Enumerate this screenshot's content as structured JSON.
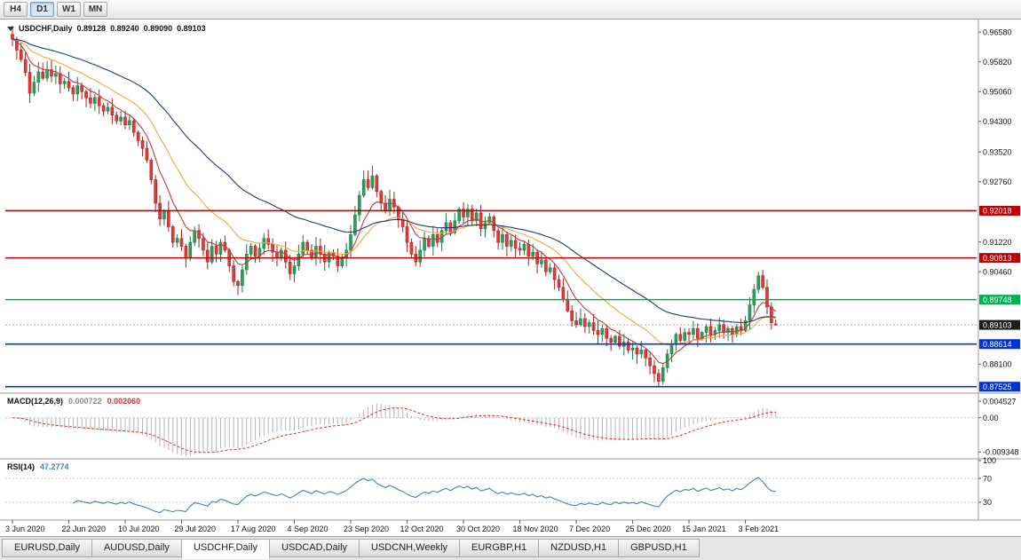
{
  "toolbar": {
    "timeframes": [
      {
        "label": "H4",
        "active": false
      },
      {
        "label": "D1",
        "active": true
      },
      {
        "label": "W1",
        "active": false
      },
      {
        "label": "MN",
        "active": false
      }
    ]
  },
  "chart_title": {
    "symbol": "USDCHF,Daily",
    "open": "0.89128",
    "high": "0.89240",
    "low": "0.89090",
    "close": "0.89103"
  },
  "indicators": {
    "macd": {
      "name": "MACD(12,26,9)",
      "value_main": "0.000722",
      "value_signal": "0.002060",
      "fast": 12,
      "slow": 26,
      "signal": 9,
      "axis_labels": [
        "0.004527",
        "0.00",
        "-0.009348"
      ],
      "hist_color": "#b4b4b4",
      "signal_color": "#cf3232"
    },
    "rsi": {
      "name": "RSI(14)",
      "value": "47.2774",
      "period": 14,
      "levels": [
        70,
        30
      ],
      "axis_labels": [
        "100",
        "70",
        "30"
      ],
      "color": "#4a7ebb"
    }
  },
  "chart_data": {
    "type": "candlestick",
    "symbol": "USDCHF",
    "timeframe": "Daily",
    "price_range": [
      0.8736,
      0.969
    ],
    "macd_range": [
      -0.0105,
      0.006
    ],
    "first_open": 0.9652,
    "closes": [
      0.964,
      0.9612,
      0.9588,
      0.9555,
      0.9502,
      0.953,
      0.9556,
      0.954,
      0.9562,
      0.9545,
      0.9552,
      0.9526,
      0.9532,
      0.9516,
      0.95,
      0.9521,
      0.9506,
      0.949,
      0.9476,
      0.9491,
      0.947,
      0.9456,
      0.9466,
      0.9446,
      0.9431,
      0.9441,
      0.9421,
      0.9432,
      0.9402,
      0.9381,
      0.9361,
      0.9331,
      0.9281,
      0.9221,
      0.9181,
      0.9201,
      0.9161,
      0.9121,
      0.9131,
      0.9111,
      0.9081,
      0.9121,
      0.9151,
      0.9131,
      0.9101,
      0.9071,
      0.9111,
      0.9091,
      0.9121,
      0.9101,
      0.9061,
      0.9021,
      0.9011,
      0.9051,
      0.9091,
      0.9111,
      0.9086,
      0.9106,
      0.9131,
      0.9116,
      0.9096,
      0.9081,
      0.9101,
      0.9071,
      0.9041,
      0.9061,
      0.9091,
      0.9121,
      0.9101,
      0.9081,
      0.9111,
      0.9091,
      0.9071,
      0.9096,
      0.9086,
      0.9061,
      0.9081,
      0.9101,
      0.9141,
      0.9191,
      0.9241,
      0.9281,
      0.9261,
      0.9291,
      0.9251,
      0.9221,
      0.9201,
      0.9231,
      0.9211,
      0.9181,
      0.9161,
      0.9121,
      0.9091,
      0.9071,
      0.9101,
      0.9131,
      0.9111,
      0.9141,
      0.9121,
      0.9151,
      0.9171,
      0.9146,
      0.9176,
      0.9206,
      0.9186,
      0.9206,
      0.9176,
      0.9196,
      0.9156,
      0.9171,
      0.9186,
      0.9151,
      0.9121,
      0.9141,
      0.9111,
      0.9126,
      0.9106,
      0.9101,
      0.9116,
      0.9086,
      0.9096,
      0.9066,
      0.9076,
      0.9046,
      0.9056,
      0.9026,
      0.9006,
      0.8976,
      0.8946,
      0.8921,
      0.8911,
      0.8926,
      0.8906,
      0.8916,
      0.8896,
      0.8886,
      0.8901,
      0.8876,
      0.8866,
      0.8881,
      0.8856,
      0.8866,
      0.8846,
      0.8851,
      0.8836,
      0.8846,
      0.8826,
      0.8806,
      0.8786,
      0.8766,
      0.8801,
      0.8836,
      0.8861,
      0.8886,
      0.8871,
      0.8891,
      0.8886,
      0.8901,
      0.8876,
      0.8891,
      0.8906,
      0.8886,
      0.8896,
      0.8911,
      0.8891,
      0.8901,
      0.8886,
      0.8906,
      0.8896,
      0.8921,
      0.8961,
      0.9001,
      0.9036,
      0.9006,
      0.8956,
      0.8916,
      0.89103
    ],
    "overrides": {
      "149": {
        "l": 0.8752
      },
      "172": {
        "h": 0.9046
      },
      "176": {
        "o": 0.89128,
        "h": 0.8924,
        "l": 0.8909,
        "c": 0.89103
      }
    },
    "x_labels": [
      {
        "t": "3 Jun 2020",
        "i": 0
      },
      {
        "t": "22 Jun 2020",
        "i": 13
      },
      {
        "t": "10 Jul 2020",
        "i": 26
      },
      {
        "t": "29 Jul 2020",
        "i": 39
      },
      {
        "t": "17 Aug 2020",
        "i": 52
      },
      {
        "t": "4 Sep 2020",
        "i": 65
      },
      {
        "t": "23 Sep 2020",
        "i": 78
      },
      {
        "t": "12 Oct 2020",
        "i": 91
      },
      {
        "t": "30 Oct 2020",
        "i": 104
      },
      {
        "t": "18 Nov 2020",
        "i": 117
      },
      {
        "t": "7 Dec 2020",
        "i": 130
      },
      {
        "t": "25 Dec 2020",
        "i": 143
      },
      {
        "t": "15 Jan 2021",
        "i": 156
      },
      {
        "t": "3 Feb 2021",
        "i": 169
      }
    ],
    "y_ticks": [
      "0.96580",
      "0.95820",
      "0.95060",
      "0.94300",
      "0.93520",
      "0.92760",
      "0.91220",
      "0.90460",
      "0.88100"
    ],
    "h_lines": [
      {
        "p": 0.92018,
        "label": "0.92018",
        "color": "#c00000"
      },
      {
        "p": 0.90813,
        "label": "0.90813",
        "color": "#c00000"
      },
      {
        "p": 0.89748,
        "label": "0.89748",
        "color": "#00b050"
      },
      {
        "p": 0.88614,
        "label": "0.88614",
        "color": "#0033cc"
      },
      {
        "p": 0.87525,
        "label": "0.87525",
        "color": "#0033cc"
      }
    ],
    "current": {
      "p": 0.89103,
      "label": "0.89103",
      "badge": "#1c1c1c"
    },
    "moving_averages": [
      {
        "period": 8,
        "color": "#c23b3b"
      },
      {
        "period": 20,
        "color": "#efa93a"
      },
      {
        "period": 45,
        "color": "#1f3a77"
      }
    ],
    "bull_color": "#2f9e5f",
    "bear_color": "#df3d3d",
    "bull_border": "#1d7a44",
    "bear_border": "#a81f1f"
  },
  "tabs": [
    {
      "label": "EURUSD,Daily",
      "active": false
    },
    {
      "label": "AUDUSD,Daily",
      "active": false
    },
    {
      "label": "USDCHF,Daily",
      "active": true
    },
    {
      "label": "USDCAD,Daily",
      "active": false
    },
    {
      "label": "USDCNH,Weekly",
      "active": false
    },
    {
      "label": "EURGBP,H1",
      "active": false
    },
    {
      "label": "NZDUSD,H1",
      "active": false
    },
    {
      "label": "GBPUSD,H1",
      "active": false
    }
  ]
}
